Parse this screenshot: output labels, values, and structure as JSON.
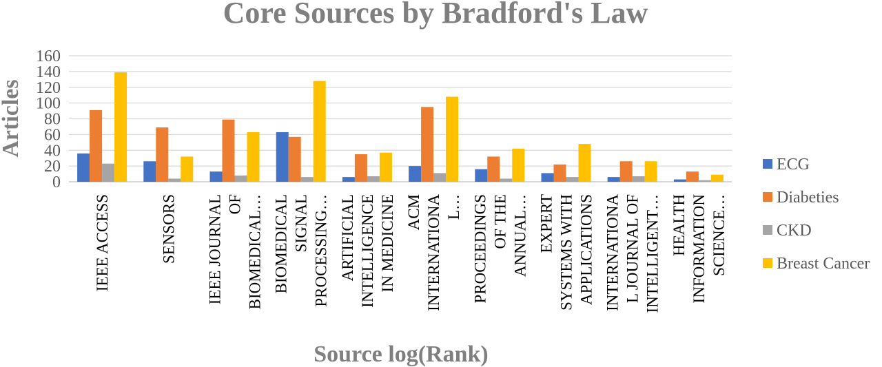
{
  "chart_data": {
    "type": "bar",
    "title": "Core Sources by Bradford's Law",
    "xlabel": "Source log(Rank)",
    "ylabel": "Articles",
    "ylim": [
      0,
      160
    ],
    "yticks": [
      0,
      20,
      40,
      60,
      80,
      100,
      120,
      140,
      160
    ],
    "grid": true,
    "legend_position": "right",
    "categories": [
      [
        "IEEE ACCESS"
      ],
      [
        "SENSORS"
      ],
      [
        "IEEE JOURNAL",
        "OF",
        "BIOMEDICAL…"
      ],
      [
        "BIOMEDICAL",
        "SIGNAL",
        "PROCESSING…"
      ],
      [
        "ARTIFICIAL",
        "INTELLIGENCE",
        "IN MEDICINE"
      ],
      [
        "ACM",
        "INTERNATIONA",
        "L…"
      ],
      [
        "PROCEEDINGS",
        "OF THE",
        "ANNUAL…"
      ],
      [
        "EXPERT",
        "SYSTEMS WITH",
        "APPLICATIONS"
      ],
      [
        "INTERNATIONA",
        "L JOURNAL OF",
        "INTELLIGENT…"
      ],
      [
        "HEALTH",
        "INFORMATION",
        "SCIENCE…"
      ]
    ],
    "series": [
      {
        "name": "ECG",
        "color": "#4472c4",
        "values": [
          36,
          26,
          13,
          63,
          6,
          20,
          16,
          11,
          6,
          3
        ]
      },
      {
        "name": "Diabeties",
        "color": "#ed7d31",
        "values": [
          91,
          69,
          79,
          57,
          35,
          95,
          32,
          22,
          26,
          13
        ]
      },
      {
        "name": "CKD",
        "color": "#a5a5a5",
        "values": [
          23,
          4,
          8,
          6,
          7,
          11,
          4,
          6,
          7,
          2
        ]
      },
      {
        "name": "Breast Cancer",
        "color": "#ffc000",
        "values": [
          139,
          32,
          63,
          128,
          37,
          108,
          42,
          48,
          26,
          9
        ]
      }
    ]
  }
}
